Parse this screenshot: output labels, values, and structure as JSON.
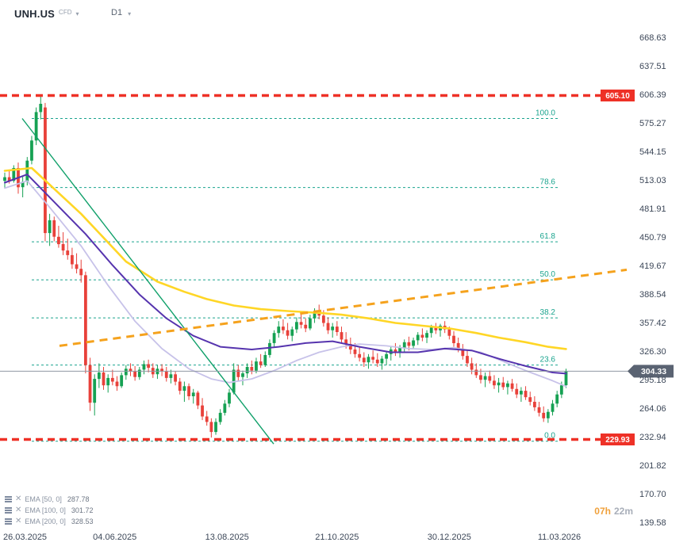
{
  "header": {
    "symbol": "UNH.US",
    "instrument_type": "CFD",
    "timeframe": "D1"
  },
  "legend": [
    {
      "label": "EMA [50, 0]",
      "value": "287.78"
    },
    {
      "label": "EMA [100, 0]",
      "value": "301.72"
    },
    {
      "label": "EMA [200, 0]",
      "value": "328.53"
    }
  ],
  "countdown": {
    "hours": "07h",
    "minutes": "22m"
  },
  "chart_data": {
    "type": "candlestick",
    "symbol": "UNH.US",
    "timeframe": "D1",
    "grid": false,
    "ylim": [
      139.58,
      668.63
    ],
    "current_price": "304.33",
    "colors": {
      "up": "#16a153",
      "down": "#e8413a",
      "level": "#ee3127",
      "current_badge": "#5a6372",
      "fib": "#1aa48e",
      "axis_text": "#3c4758"
    },
    "y_axis_ticks": [
      "668.63",
      "637.51",
      "606.39",
      "575.27",
      "544.15",
      "513.03",
      "481.91",
      "450.79",
      "419.67",
      "388.54",
      "357.42",
      "326.30",
      "295.18",
      "264.06",
      "232.94",
      "201.82",
      "170.70",
      "139.58"
    ],
    "x_axis_labels": [
      {
        "label": "26.03.2025",
        "ci": 0
      },
      {
        "label": "04.06.2025",
        "ci": 24.5
      },
      {
        "label": "13.08.2025",
        "ci": 49.5
      },
      {
        "label": "21.10.2025",
        "ci": 74
      },
      {
        "label": "30.12.2025",
        "ci": 99
      },
      {
        "label": "11.03.2026",
        "ci": 123.5
      }
    ],
    "horizontal_levels": [
      {
        "price": "605.10"
      },
      {
        "price": "229.93"
      }
    ],
    "fibonacci": {
      "x1": 40,
      "x2": 706,
      "label_x": 700,
      "levels": [
        {
          "label": "100.0",
          "price": 580.0
        },
        {
          "label": "78.6",
          "price": 504.7
        },
        {
          "label": "61.8",
          "price": 445.5
        },
        {
          "label": "50.0",
          "price": 404.0
        },
        {
          "label": "38.2",
          "price": 362.5
        },
        {
          "label": "23.6",
          "price": 311.1
        },
        {
          "label": "0.0",
          "price": 228.0
        }
      ]
    },
    "trend_lines": [
      {
        "name": "downtrend",
        "color": "#10a06a",
        "width": 1.4,
        "x1": 28,
        "p1": 580,
        "x2": 345,
        "p2": 225
      },
      {
        "name": "uptrend",
        "color": "#f5a21d",
        "width": 3,
        "dash": "10 7",
        "x1": 75,
        "p1": 332,
        "x2": 790,
        "p2": 415
      }
    ],
    "ema": [
      {
        "period": 50,
        "offset": 0,
        "value": "287.78",
        "color": "#c7c2e9",
        "width": 1.8,
        "points": [
          [
            0,
            504
          ],
          [
            5,
            512
          ],
          [
            10,
            483
          ],
          [
            17,
            441
          ],
          [
            23,
            398
          ],
          [
            29,
            359
          ],
          [
            35,
            329
          ],
          [
            41,
            307
          ],
          [
            46,
            296
          ],
          [
            50,
            292
          ],
          [
            55,
            296
          ],
          [
            60,
            305
          ],
          [
            65,
            316
          ],
          [
            70,
            325
          ],
          [
            75,
            331
          ],
          [
            79,
            334
          ],
          [
            85,
            332
          ],
          [
            90,
            329
          ],
          [
            95,
            328
          ],
          [
            100,
            330
          ],
          [
            106,
            325
          ],
          [
            111,
            315
          ],
          [
            116,
            305
          ],
          [
            122,
            294
          ],
          [
            125,
            287.78
          ]
        ]
      },
      {
        "period": 100,
        "offset": 0,
        "value": "301.72",
        "color": "#5634ae",
        "width": 2,
        "points": [
          [
            0,
            510
          ],
          [
            5,
            519
          ],
          [
            11,
            489
          ],
          [
            18,
            454
          ],
          [
            24,
            420
          ],
          [
            30,
            388
          ],
          [
            36,
            362
          ],
          [
            42,
            343
          ],
          [
            48,
            331
          ],
          [
            55,
            328
          ],
          [
            61,
            331
          ],
          [
            67,
            335
          ],
          [
            73,
            337
          ],
          [
            79,
            331
          ],
          [
            86,
            325
          ],
          [
            92,
            325
          ],
          [
            98,
            329
          ],
          [
            104,
            327
          ],
          [
            110,
            318
          ],
          [
            116,
            310
          ],
          [
            122,
            303
          ],
          [
            125,
            301.72
          ]
        ]
      },
      {
        "period": 200,
        "offset": 0,
        "value": "328.53",
        "color": "#ffd626",
        "width": 2.6,
        "points": [
          [
            0,
            523
          ],
          [
            6,
            526
          ],
          [
            17,
            476
          ],
          [
            27,
            424
          ],
          [
            34,
            402
          ],
          [
            40,
            391
          ],
          [
            45,
            383
          ],
          [
            51,
            376
          ],
          [
            57,
            372
          ],
          [
            63,
            370
          ],
          [
            70,
            368
          ],
          [
            75,
            366
          ],
          [
            81,
            362
          ],
          [
            87,
            357
          ],
          [
            93,
            354
          ],
          [
            99,
            351
          ],
          [
            105,
            346
          ],
          [
            110,
            341
          ],
          [
            116,
            336
          ],
          [
            121,
            331
          ],
          [
            125,
            328.53
          ]
        ]
      }
    ],
    "candles": [
      [
        512,
        521,
        504,
        516
      ],
      [
        516,
        524,
        509,
        512
      ],
      [
        512,
        529,
        510,
        526
      ],
      [
        526,
        532,
        498,
        505
      ],
      [
        505,
        517,
        494,
        511
      ],
      [
        511,
        538,
        507,
        534
      ],
      [
        534,
        561,
        530,
        556
      ],
      [
        556,
        592,
        551,
        587
      ],
      [
        587,
        605,
        579,
        596
      ],
      [
        592,
        597,
        446,
        455
      ],
      [
        455,
        476,
        441,
        469
      ],
      [
        469,
        473,
        446,
        451
      ],
      [
        451,
        463,
        439,
        443
      ],
      [
        443,
        456,
        431,
        436
      ],
      [
        436,
        449,
        426,
        431
      ],
      [
        431,
        439,
        416,
        421
      ],
      [
        421,
        433,
        411,
        416
      ],
      [
        416,
        426,
        401,
        409
      ],
      [
        409,
        413,
        302,
        311
      ],
      [
        311,
        319,
        261,
        270
      ],
      [
        270,
        301,
        256,
        296
      ],
      [
        296,
        313,
        286,
        303
      ],
      [
        303,
        309,
        284,
        289
      ],
      [
        289,
        301,
        281,
        297
      ],
      [
        297,
        306,
        289,
        293
      ],
      [
        293,
        299,
        283,
        288
      ],
      [
        288,
        303,
        286,
        300
      ],
      [
        300,
        311,
        295,
        307
      ],
      [
        307,
        313,
        299,
        304
      ],
      [
        304,
        310,
        294,
        298
      ],
      [
        298,
        309,
        295,
        306
      ],
      [
        306,
        316,
        301,
        312
      ],
      [
        312,
        317,
        303,
        308
      ],
      [
        308,
        313,
        297,
        301
      ],
      [
        301,
        311,
        296,
        307
      ],
      [
        307,
        312,
        299,
        304
      ],
      [
        304,
        309,
        293,
        297
      ],
      [
        297,
        306,
        291,
        301
      ],
      [
        301,
        304,
        289,
        293
      ],
      [
        293,
        297,
        279,
        283
      ],
      [
        283,
        293,
        271,
        288
      ],
      [
        288,
        291,
        273,
        277
      ],
      [
        277,
        285,
        269,
        281
      ],
      [
        281,
        283,
        263,
        267
      ],
      [
        267,
        275,
        251,
        255
      ],
      [
        255,
        261,
        245,
        249
      ],
      [
        249,
        253,
        232,
        238
      ],
      [
        238,
        253,
        235,
        249
      ],
      [
        249,
        263,
        246,
        259
      ],
      [
        259,
        273,
        256,
        269
      ],
      [
        269,
        285,
        265,
        281
      ],
      [
        281,
        313,
        279,
        306
      ],
      [
        306,
        311,
        293,
        298
      ],
      [
        298,
        305,
        289,
        302
      ],
      [
        302,
        313,
        297,
        309
      ],
      [
        309,
        316,
        301,
        305
      ],
      [
        305,
        319,
        302,
        315
      ],
      [
        315,
        323,
        308,
        311
      ],
      [
        311,
        326,
        309,
        322
      ],
      [
        322,
        339,
        319,
        335
      ],
      [
        335,
        349,
        331,
        346
      ],
      [
        346,
        359,
        341,
        353
      ],
      [
        353,
        361,
        345,
        349
      ],
      [
        349,
        357,
        339,
        343
      ],
      [
        343,
        353,
        337,
        350
      ],
      [
        350,
        363,
        346,
        358
      ],
      [
        358,
        367,
        351,
        355
      ],
      [
        355,
        362,
        347,
        351
      ],
      [
        351,
        366,
        349,
        362
      ],
      [
        362,
        373,
        357,
        369
      ],
      [
        369,
        377,
        361,
        365
      ],
      [
        365,
        371,
        353,
        357
      ],
      [
        357,
        363,
        345,
        349
      ],
      [
        349,
        357,
        341,
        353
      ],
      [
        353,
        359,
        343,
        347
      ],
      [
        347,
        353,
        335,
        339
      ],
      [
        339,
        347,
        329,
        334
      ],
      [
        334,
        341,
        323,
        328
      ],
      [
        328,
        335,
        319,
        323
      ],
      [
        323,
        331,
        315,
        319
      ],
      [
        319,
        325,
        309,
        314
      ],
      [
        314,
        323,
        307,
        320
      ],
      [
        320,
        327,
        313,
        317
      ],
      [
        317,
        324,
        309,
        313
      ],
      [
        313,
        321,
        306,
        318
      ],
      [
        318,
        326,
        311,
        323
      ],
      [
        323,
        331,
        316,
        328
      ],
      [
        328,
        335,
        321,
        325
      ],
      [
        325,
        333,
        319,
        330
      ],
      [
        330,
        339,
        325,
        336
      ],
      [
        336,
        342,
        327,
        332
      ],
      [
        332,
        341,
        328,
        338
      ],
      [
        338,
        347,
        333,
        344
      ],
      [
        344,
        351,
        337,
        341
      ],
      [
        341,
        349,
        335,
        346
      ],
      [
        346,
        355,
        341,
        352
      ],
      [
        352,
        357,
        345,
        349
      ],
      [
        349,
        356,
        342,
        354
      ],
      [
        354,
        359,
        346,
        350
      ],
      [
        350,
        353,
        339,
        343
      ],
      [
        343,
        348,
        331,
        335
      ],
      [
        335,
        341,
        325,
        329
      ],
      [
        329,
        334,
        317,
        321
      ],
      [
        321,
        327,
        309,
        313
      ],
      [
        313,
        319,
        301,
        306
      ],
      [
        306,
        313,
        297,
        300
      ],
      [
        300,
        307,
        291,
        295
      ],
      [
        295,
        303,
        287,
        299
      ],
      [
        299,
        305,
        291,
        294
      ],
      [
        294,
        300,
        285,
        289
      ],
      [
        289,
        297,
        281,
        292
      ],
      [
        292,
        298,
        284,
        287
      ],
      [
        287,
        294,
        279,
        291
      ],
      [
        291,
        296,
        282,
        285
      ],
      [
        285,
        291,
        275,
        279
      ],
      [
        279,
        287,
        271,
        283
      ],
      [
        283,
        288,
        273,
        276
      ],
      [
        276,
        282,
        267,
        271
      ],
      [
        271,
        277,
        261,
        265
      ],
      [
        265,
        271,
        255,
        259
      ],
      [
        259,
        266,
        249,
        253
      ],
      [
        253,
        263,
        248,
        260
      ],
      [
        260,
        273,
        256,
        269
      ],
      [
        269,
        283,
        265,
        279
      ],
      [
        279,
        293,
        275,
        289
      ],
      [
        289,
        307,
        286,
        304.33
      ]
    ]
  }
}
